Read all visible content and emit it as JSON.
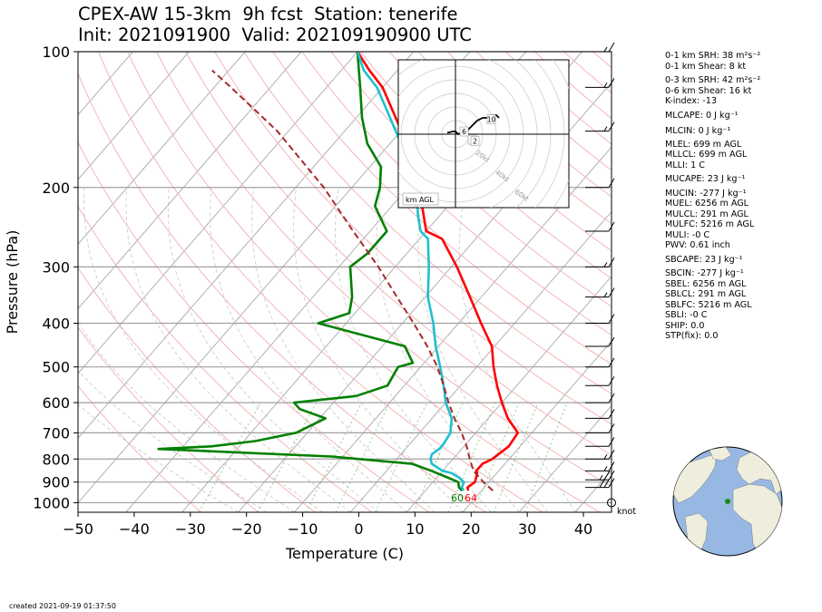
{
  "title_line1": "CPEX-AW 15-3km  9h fcst  Station: tenerife",
  "title_line2": "Init: 2021091900  Valid: 202109190900 UTC",
  "created": "created 2021-09-19 01:37:50",
  "knot_label": "knot",
  "hodograph": {
    "label": "km AGL",
    "ring_labels": [
      "20kt",
      "40kt",
      "60kt",
      "80kt"
    ],
    "height_markers": [
      "1",
      "2",
      "6",
      "10"
    ],
    "trace": [
      [
        -3,
        0.5
      ],
      [
        -1,
        1
      ],
      [
        0,
        1
      ],
      [
        1,
        0
      ],
      [
        2,
        0.5
      ],
      [
        3,
        1
      ],
      [
        4,
        1
      ],
      [
        6,
        3
      ],
      [
        7,
        4
      ],
      [
        8,
        5
      ],
      [
        10,
        6
      ],
      [
        12,
        6
      ],
      [
        13,
        7
      ],
      [
        15,
        7
      ],
      [
        16,
        6
      ]
    ]
  },
  "params": [
    "0-1 km SRH: 38 m²s⁻²",
    "0-1 km Shear: 8 kt",
    "0-3 km SRH: 42 m²s⁻²",
    "0-6 km Shear: 16 kt",
    "K-index: -13",
    "MLCAPE: 0 J kg⁻¹",
    "MLCIN: 0 J kg⁻¹",
    "MLEL: 699 m AGL",
    "MLLCL: 699 m AGL",
    "MLLI: 1 C",
    "MUCAPE: 23 J kg⁻¹",
    "MUCIN: -277 J kg⁻¹",
    "MUEL: 6256 m AGL",
    "MULCL: 291 m AGL",
    "MULFC: 5216 m AGL",
    "MULI: -0 C",
    "PWV: 0.61 inch",
    "SBCAPE: 23 J kg⁻¹",
    "SBCIN: -277 J kg⁻¹",
    "SBEL: 6256 m AGL",
    "SBLCL: 291 m AGL",
    "SBLFC: 5216 m AGL",
    "SBLI: -0 C",
    "SHIP: 0.0",
    "STP(fix): 0.0"
  ],
  "colors": {
    "temperature": "#ff0000",
    "dewpoint": "#008000",
    "wetbulb": "#1fbfcf",
    "parcel": "#a52a2a",
    "skewed_isotherm": "#b0b0b0",
    "dry_adiabat": "#f4b6b6",
    "mixing_ratio": "#8fd18f",
    "ocean": "#98b8e4",
    "land": "#efeedc"
  },
  "chart_data": {
    "type": "line",
    "subtype": "skew-T log-p",
    "xlabel": "Temperature (C)",
    "ylabel": "Pressure (hPa)",
    "xlim": [
      -50,
      45
    ],
    "ylim": [
      1050,
      100
    ],
    "y_scale": "log",
    "x_ticks": [
      -50,
      -40,
      -30,
      -20,
      -10,
      0,
      10,
      20,
      30,
      40
    ],
    "y_ticks": [
      100,
      200,
      300,
      400,
      500,
      600,
      700,
      800,
      900,
      1000
    ],
    "surface_dewpoint_label": "60",
    "surface_temperature_label": "64",
    "series": [
      {
        "key": "temperature",
        "p": [
          940,
          925,
          900,
          880,
          860,
          850,
          820,
          800,
          750,
          700,
          650,
          600,
          550,
          500,
          450,
          400,
          350,
          300,
          260,
          250,
          230,
          200,
          180,
          160,
          140,
          120,
          110,
          100
        ],
        "t": [
          17.6,
          17.0,
          17.5,
          17.0,
          16.5,
          16.0,
          16.0,
          17.0,
          18.0,
          17.5,
          13.5,
          10.0,
          6.5,
          3.0,
          -0.5,
          -6.0,
          -12.0,
          -19.0,
          -26.0,
          -30.0,
          -33.0,
          -38.0,
          -42.0,
          -47.0,
          -53.0,
          -60.0,
          -65.0,
          -70.0
        ]
      },
      {
        "key": "dewpoint",
        "p": [
          940,
          925,
          900,
          880,
          850,
          820,
          790,
          760,
          750,
          730,
          700,
          650,
          620,
          600,
          580,
          550,
          500,
          490,
          450,
          400,
          380,
          350,
          300,
          280,
          250,
          220,
          200,
          180,
          160,
          140,
          120,
          100
        ],
        "t": [
          16.5,
          15.5,
          14.5,
          12.0,
          8.0,
          3.5,
          -12.0,
          -44.0,
          -35.0,
          -28.0,
          -22.0,
          -19.0,
          -25.0,
          -27.0,
          -17.0,
          -13.0,
          -14.0,
          -12.0,
          -16.0,
          -35.0,
          -31.0,
          -33.0,
          -38.0,
          -37.0,
          -37.0,
          -43.0,
          -45.0,
          -48.0,
          -54.0,
          -59.0,
          -64.0,
          -70.0
        ]
      },
      {
        "key": "wetbulb",
        "p": [
          940,
          925,
          900,
          880,
          860,
          850,
          820,
          800,
          780,
          760,
          740,
          700,
          650,
          600,
          550,
          500,
          450,
          400,
          350,
          300,
          260,
          250,
          230,
          200,
          180,
          160,
          140,
          120,
          110,
          100
        ],
        "t": [
          16.8,
          16.0,
          15.5,
          14.0,
          12.0,
          10.0,
          7.0,
          6.0,
          5.5,
          6.0,
          6.0,
          5.5,
          3.5,
          0.0,
          -3.0,
          -6.5,
          -10.5,
          -14.5,
          -19.5,
          -24.0,
          -28.5,
          -31.0,
          -34.0,
          -38.5,
          -43.0,
          -48.0,
          -54.0,
          -61.0,
          -66.0,
          -70.0
        ]
      },
      {
        "key": "parcel",
        "p": [
          940,
          900,
          850,
          800,
          750,
          700,
          650,
          600,
          550,
          500,
          450,
          400,
          350,
          300,
          250,
          200,
          150,
          120,
          110
        ],
        "t": [
          22.0,
          19.0,
          15.5,
          13.0,
          10.5,
          7.5,
          4.0,
          0.5,
          -3.0,
          -7.0,
          -12.0,
          -18.0,
          -25.0,
          -33.0,
          -43.0,
          -55.0,
          -72.0,
          -87.0,
          -93.0
        ]
      }
    ],
    "wind_barbs": [
      {
        "p": 1000,
        "speed_kt": 0
      },
      {
        "p": 925,
        "speed_kt": 30
      },
      {
        "p": 890,
        "speed_kt": 25
      },
      {
        "p": 850,
        "speed_kt": 15
      },
      {
        "p": 800,
        "speed_kt": 15
      },
      {
        "p": 750,
        "speed_kt": 10
      },
      {
        "p": 700,
        "speed_kt": 10
      },
      {
        "p": 650,
        "speed_kt": 10
      },
      {
        "p": 600,
        "speed_kt": 10
      },
      {
        "p": 550,
        "speed_kt": 10
      },
      {
        "p": 500,
        "speed_kt": 10
      },
      {
        "p": 450,
        "speed_kt": 10
      },
      {
        "p": 400,
        "speed_kt": 10
      },
      {
        "p": 350,
        "speed_kt": 15
      },
      {
        "p": 300,
        "speed_kt": 15
      },
      {
        "p": 250,
        "speed_kt": 10
      },
      {
        "p": 200,
        "speed_kt": 10
      },
      {
        "p": 150,
        "speed_kt": 15
      },
      {
        "p": 120,
        "speed_kt": 15
      },
      {
        "p": 100,
        "speed_kt": 15
      }
    ]
  }
}
